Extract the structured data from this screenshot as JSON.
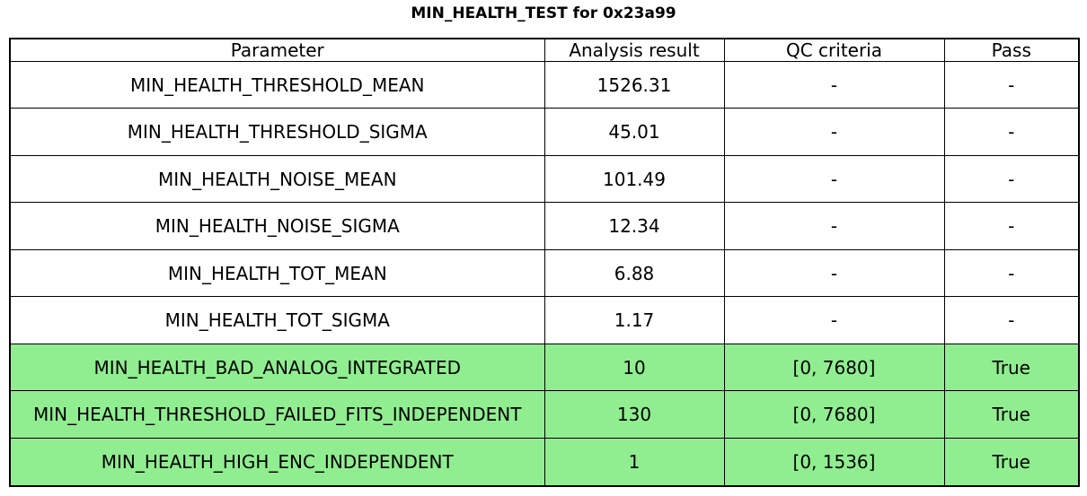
{
  "title": "MIN_HEALTH_TEST for 0x23a99",
  "colors": {
    "background": "#ffffff",
    "border_black": "#000000",
    "pass_true_green": "#90ee90"
  },
  "chart_data": {
    "type": "table",
    "title": "MIN_HEALTH_TEST for 0x23a99",
    "columns": [
      "Parameter",
      "Analysis result",
      "QC criteria",
      "Pass"
    ],
    "rows": [
      [
        "MIN_HEALTH_THRESHOLD_MEAN",
        "1526.31",
        "-",
        "-"
      ],
      [
        "MIN_HEALTH_THRESHOLD_SIGMA",
        "45.01",
        "-",
        "-"
      ],
      [
        "MIN_HEALTH_NOISE_MEAN",
        "101.49",
        "-",
        "-"
      ],
      [
        "MIN_HEALTH_NOISE_SIGMA",
        "12.34",
        "-",
        "-"
      ],
      [
        "MIN_HEALTH_TOT_MEAN",
        "6.88",
        "-",
        "-"
      ],
      [
        "MIN_HEALTH_TOT_SIGMA",
        "1.17",
        "-",
        "-"
      ],
      [
        "MIN_HEALTH_BAD_ANALOG_INTEGRATED",
        "10",
        "[0, 7680]",
        "True"
      ],
      [
        "MIN_HEALTH_THRESHOLD_FAILED_FITS_INDEPENDENT",
        "130",
        "[0, 7680]",
        "True"
      ],
      [
        "MIN_HEALTH_HIGH_ENC_INDEPENDENT",
        "1",
        "[0, 1536]",
        "True"
      ]
    ],
    "row_highlight": [
      false,
      false,
      false,
      false,
      false,
      false,
      true,
      true,
      true
    ],
    "highlight_color": "#90ee90",
    "grid": true,
    "legend_position": "none"
  }
}
